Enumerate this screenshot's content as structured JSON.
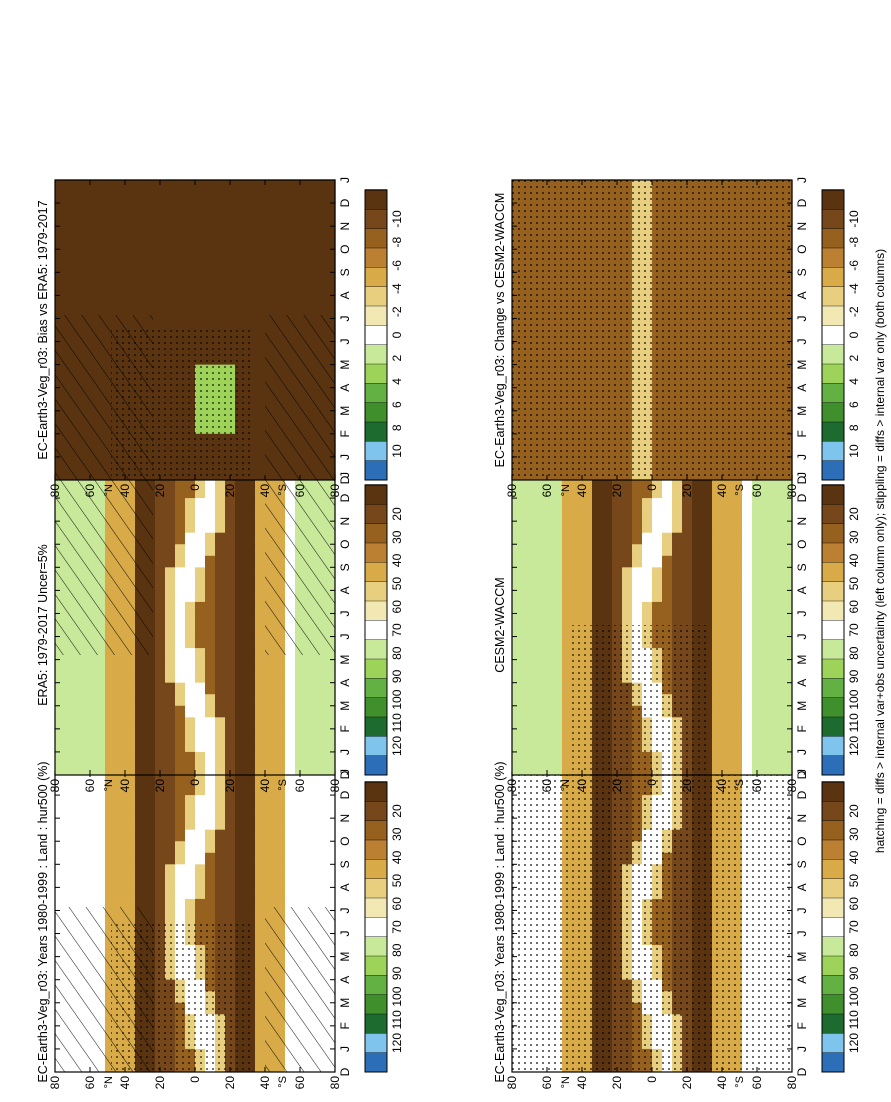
{
  "footnote": "hatching = diffs > internal var+obs uncertainty (left column only); stippling = diffs > internal var only (both columns)",
  "chart_data": [
    {
      "type": "heatmap",
      "id": "panel-model-left",
      "title": "EC-Earth3-Veg_r03: Years 1980-1999 : Land : hur500 (%)",
      "x_ticks": [
        "D",
        "J",
        "F",
        "M",
        "A",
        "M",
        "J",
        "J",
        "A",
        "S",
        "O",
        "N",
        "D",
        "J"
      ],
      "y_ticks": [
        "80",
        "60",
        "40",
        "20",
        "0",
        "20",
        "40",
        "60",
        "80"
      ],
      "y_center_label": "°N",
      "y_south_label": "°S",
      "colorbar_ticks": [
        "120",
        "110",
        "100",
        "90",
        "80",
        "70",
        "60",
        "50",
        "40",
        "30",
        "20"
      ],
      "colors": [
        "#2c6fb8",
        "#7fc4ec",
        "#1e6b30",
        "#3f8f2d",
        "#63b043",
        "#9ed35a",
        "#c9e99a",
        "#ffffff",
        "#f2e8b4",
        "#e8cf80",
        "#d8aa48",
        "#bb8032",
        "#96601f",
        "#75471a",
        "#5a3410"
      ],
      "hatch": "left",
      "stipple": "left"
    },
    {
      "type": "heatmap",
      "id": "panel-obs",
      "title": "ERA5: 1979-2017 Uncer=5%",
      "x_ticks": [
        "D",
        "J",
        "F",
        "M",
        "A",
        "M",
        "J",
        "J",
        "A",
        "S",
        "O",
        "N",
        "D",
        "J"
      ],
      "y_ticks": [
        "80",
        "60",
        "40",
        "20",
        "0",
        "20",
        "40",
        "60",
        "80"
      ],
      "y_center_label": "°N",
      "y_south_label": "°S",
      "colorbar_ticks": [
        "120",
        "110",
        "100",
        "90",
        "80",
        "70",
        "60",
        "50",
        "40",
        "30",
        "20"
      ],
      "colors": [
        "#2c6fb8",
        "#7fc4ec",
        "#1e6b30",
        "#3f8f2d",
        "#63b043",
        "#9ed35a",
        "#c9e99a",
        "#ffffff",
        "#f2e8b4",
        "#e8cf80",
        "#d8aa48",
        "#bb8032",
        "#96601f",
        "#75471a",
        "#5a3410"
      ],
      "hatch": "right",
      "stipple": "none"
    },
    {
      "type": "heatmap",
      "id": "panel-bias",
      "title": "EC-Earth3-Veg_r03: Bias vs ERA5: 1979-2017",
      "x_ticks": [
        "D",
        "J",
        "F",
        "M",
        "A",
        "M",
        "J",
        "J",
        "A",
        "S",
        "O",
        "N",
        "D",
        "J"
      ],
      "y_ticks": [
        "80",
        "60",
        "40",
        "20",
        "0",
        "20",
        "40",
        "60",
        "80"
      ],
      "y_center_label": "°N",
      "y_south_label": "°S",
      "colorbar_ticks": [
        "10",
        "8",
        "6",
        "4",
        "2",
        "0",
        "-2",
        "-4",
        "-6",
        "-8",
        "-10"
      ],
      "colors": [
        "#2c6fb8",
        "#7fc4ec",
        "#1e6b30",
        "#3f8f2d",
        "#63b043",
        "#9ed35a",
        "#c9e99a",
        "#ffffff",
        "#f2e8b4",
        "#e8cf80",
        "#d8aa48",
        "#bb8032",
        "#96601f",
        "#75471a",
        "#5a3410"
      ],
      "hatch": "left",
      "stipple": "left"
    },
    {
      "type": "heatmap",
      "id": "panel-model-right",
      "title": "EC-Earth3-Veg_r03: Years 1980-1999 : Land : hur500 (%)",
      "x_ticks": [
        "D",
        "J",
        "F",
        "M",
        "A",
        "M",
        "J",
        "J",
        "A",
        "S",
        "O",
        "N",
        "D",
        "J"
      ],
      "y_ticks": [
        "80",
        "60",
        "40",
        "20",
        "0",
        "20",
        "40",
        "60",
        "80"
      ],
      "y_center_label": "°N",
      "y_south_label": "°S",
      "colorbar_ticks": [
        "120",
        "110",
        "100",
        "90",
        "80",
        "70",
        "60",
        "50",
        "40",
        "30",
        "20"
      ],
      "colors": [
        "#2c6fb8",
        "#7fc4ec",
        "#1e6b30",
        "#3f8f2d",
        "#63b043",
        "#9ed35a",
        "#c9e99a",
        "#ffffff",
        "#f2e8b4",
        "#e8cf80",
        "#d8aa48",
        "#bb8032",
        "#96601f",
        "#75471a",
        "#5a3410"
      ],
      "hatch": "none",
      "stipple": "full"
    },
    {
      "type": "heatmap",
      "id": "panel-cesm",
      "title": "CESM2-WACCM",
      "x_ticks": [
        "D",
        "J",
        "F",
        "M",
        "A",
        "M",
        "J",
        "J",
        "A",
        "S",
        "O",
        "N",
        "D",
        "J"
      ],
      "y_ticks": [
        "80",
        "60",
        "40",
        "20",
        "0",
        "20",
        "40",
        "60",
        "80"
      ],
      "y_center_label": "°N",
      "y_south_label": "°S",
      "colorbar_ticks": [
        "120",
        "110",
        "100",
        "90",
        "80",
        "70",
        "60",
        "50",
        "40",
        "30",
        "20"
      ],
      "colors": [
        "#2c6fb8",
        "#7fc4ec",
        "#1e6b30",
        "#3f8f2d",
        "#63b043",
        "#9ed35a",
        "#c9e99a",
        "#ffffff",
        "#f2e8b4",
        "#e8cf80",
        "#d8aa48",
        "#bb8032",
        "#96601f",
        "#75471a",
        "#5a3410"
      ],
      "hatch": "none",
      "stipple": "left"
    },
    {
      "type": "heatmap",
      "id": "panel-change",
      "title": "EC-Earth3-Veg_r03: Change vs CESM2-WACCM",
      "x_ticks": [
        "D",
        "J",
        "F",
        "M",
        "A",
        "M",
        "J",
        "J",
        "A",
        "S",
        "O",
        "N",
        "D",
        "J"
      ],
      "y_ticks": [
        "80",
        "60",
        "40",
        "20",
        "0",
        "20",
        "40",
        "60",
        "80"
      ],
      "y_center_label": "°N",
      "y_south_label": "°S",
      "colorbar_ticks": [
        "10",
        "8",
        "6",
        "4",
        "2",
        "0",
        "-2",
        "-4",
        "-6",
        "-8",
        "-10"
      ],
      "colors": [
        "#2c6fb8",
        "#7fc4ec",
        "#1e6b30",
        "#3f8f2d",
        "#63b043",
        "#9ed35a",
        "#c9e99a",
        "#ffffff",
        "#f2e8b4",
        "#e8cf80",
        "#d8aa48",
        "#bb8032",
        "#96601f",
        "#75471a",
        "#5a3410"
      ],
      "hatch": "none",
      "stipple": "full"
    }
  ]
}
